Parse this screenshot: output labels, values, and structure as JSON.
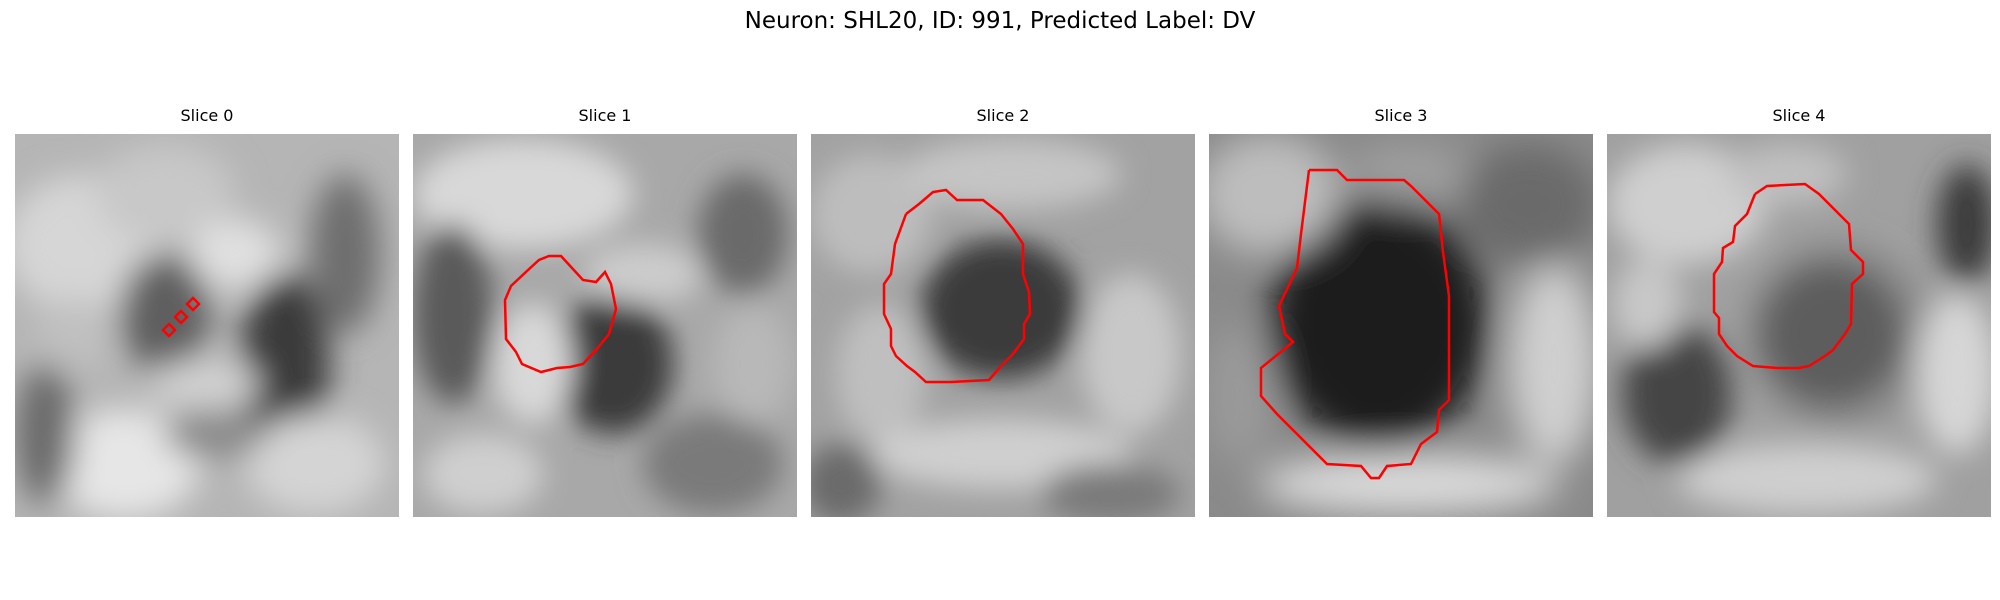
{
  "figure": {
    "title": "Neuron: SHL20, ID: 991, Predicted Label: DV",
    "contour_color": "#ff0000"
  },
  "slices": [
    {
      "title": "Slice 0",
      "contour": "small-diamond-markers"
    },
    {
      "title": "Slice 1",
      "contour": "outline"
    },
    {
      "title": "Slice 2",
      "contour": "outline"
    },
    {
      "title": "Slice 3",
      "contour": "outline"
    },
    {
      "title": "Slice 4",
      "contour": "outline"
    }
  ]
}
